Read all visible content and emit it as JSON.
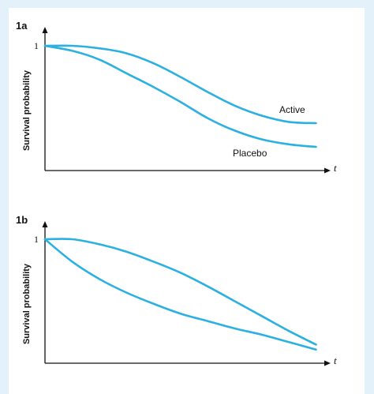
{
  "chart_data": [
    {
      "type": "line",
      "panel_label": "1a",
      "ylabel": "Survival probability",
      "xlabel": "t",
      "y_tick_labels": [
        "1"
      ],
      "ylim": [
        0,
        1.02
      ],
      "xlim": [
        0,
        1.05
      ],
      "grid": false,
      "legend": "inline labels",
      "series": [
        {
          "name": "Active",
          "x": [
            0,
            0.1,
            0.2,
            0.3,
            0.4,
            0.5,
            0.6,
            0.7,
            0.8,
            0.9,
            1.0
          ],
          "values": [
            1.0,
            1.0,
            0.98,
            0.94,
            0.86,
            0.75,
            0.63,
            0.52,
            0.44,
            0.39,
            0.38
          ]
        },
        {
          "name": "Placebo",
          "x": [
            0,
            0.1,
            0.2,
            0.3,
            0.4,
            0.5,
            0.6,
            0.7,
            0.8,
            0.9,
            1.0
          ],
          "values": [
            1.0,
            0.96,
            0.89,
            0.78,
            0.67,
            0.55,
            0.42,
            0.32,
            0.25,
            0.21,
            0.19
          ]
        }
      ],
      "colors": {
        "curve": "#2bb0e2",
        "axis": "#111111"
      }
    },
    {
      "type": "line",
      "panel_label": "1b",
      "ylabel": "Survival probability",
      "xlabel": "t",
      "y_tick_labels": [
        "1"
      ],
      "ylim": [
        0,
        1.02
      ],
      "xlim": [
        0,
        1.05
      ],
      "grid": false,
      "legend": "none",
      "series": [
        {
          "x": [
            0,
            0.1,
            0.2,
            0.3,
            0.4,
            0.5,
            0.6,
            0.7,
            0.8,
            0.9,
            1.0
          ],
          "values": [
            1.0,
            1.0,
            0.96,
            0.9,
            0.82,
            0.73,
            0.62,
            0.5,
            0.38,
            0.26,
            0.15
          ]
        },
        {
          "x": [
            0,
            0.1,
            0.2,
            0.3,
            0.4,
            0.5,
            0.6,
            0.7,
            0.8,
            0.9,
            1.0
          ],
          "values": [
            1.0,
            0.82,
            0.68,
            0.57,
            0.48,
            0.4,
            0.34,
            0.28,
            0.23,
            0.17,
            0.11
          ]
        }
      ],
      "colors": {
        "curve": "#2bb0e2",
        "axis": "#111111"
      }
    }
  ],
  "decorations": {
    "stripe_color": "#e3f1fb"
  }
}
